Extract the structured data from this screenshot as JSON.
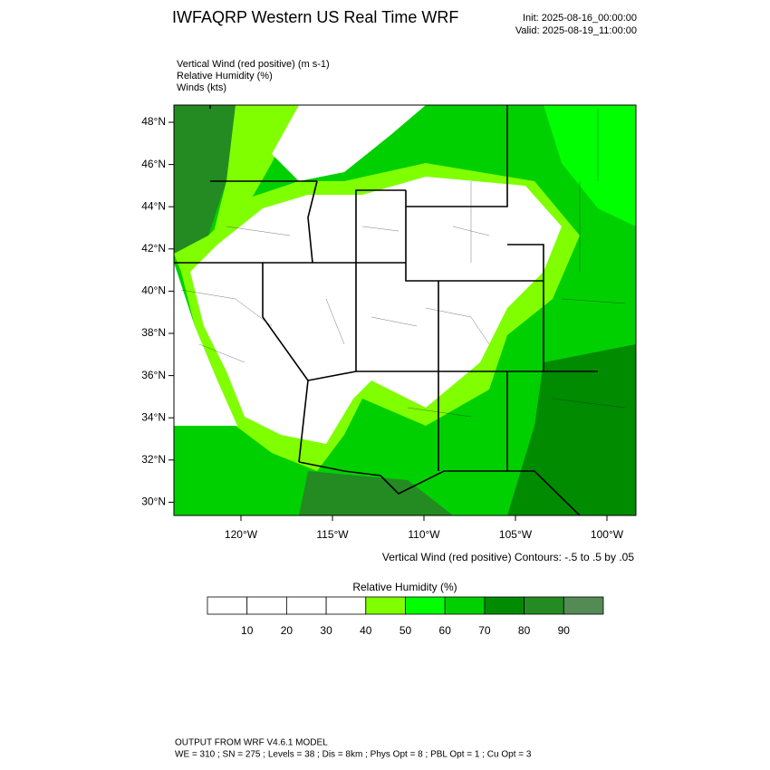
{
  "header": {
    "title": "IWFAQRP Western US Real Time WRF",
    "init": "Init: 2025-08-16_00:00:00",
    "valid": "Valid: 2025-08-19_11:00:00"
  },
  "fields": [
    "Vertical Wind (red positive)   (m s-1)",
    "Relative Humidity   (%)",
    "Winds   (kts)"
  ],
  "map": {
    "lat_labels": [
      "48°N",
      "46°N",
      "44°N",
      "42°N",
      "40°N",
      "38°N",
      "36°N",
      "34°N",
      "32°N",
      "30°N"
    ],
    "lon_labels": [
      "120°W",
      "115°W",
      "110°W",
      "105°W",
      "100°W"
    ],
    "contour_note": "Vertical Wind (red positive) Contours: -.5 to .5 by .05"
  },
  "colorbar": {
    "title": "Relative Humidity   (%)",
    "levels": [
      10,
      20,
      30,
      40,
      50,
      60,
      70,
      80,
      90
    ],
    "colors": [
      "#ffffff",
      "#ffffff",
      "#ffffff",
      "#ffffff",
      "#80ff00",
      "#00ff00",
      "#00d000",
      "#008b00",
      "#238b22",
      "#548b54"
    ]
  },
  "footer": {
    "line1": "OUTPUT FROM WRF V4.6.1 MODEL",
    "line2": "WE = 310 ; SN = 275 ; Levels = 38 ; Dis = 8km ; Phys Opt = 8 ; PBL Opt = 1 ; Cu Opt = 3"
  }
}
